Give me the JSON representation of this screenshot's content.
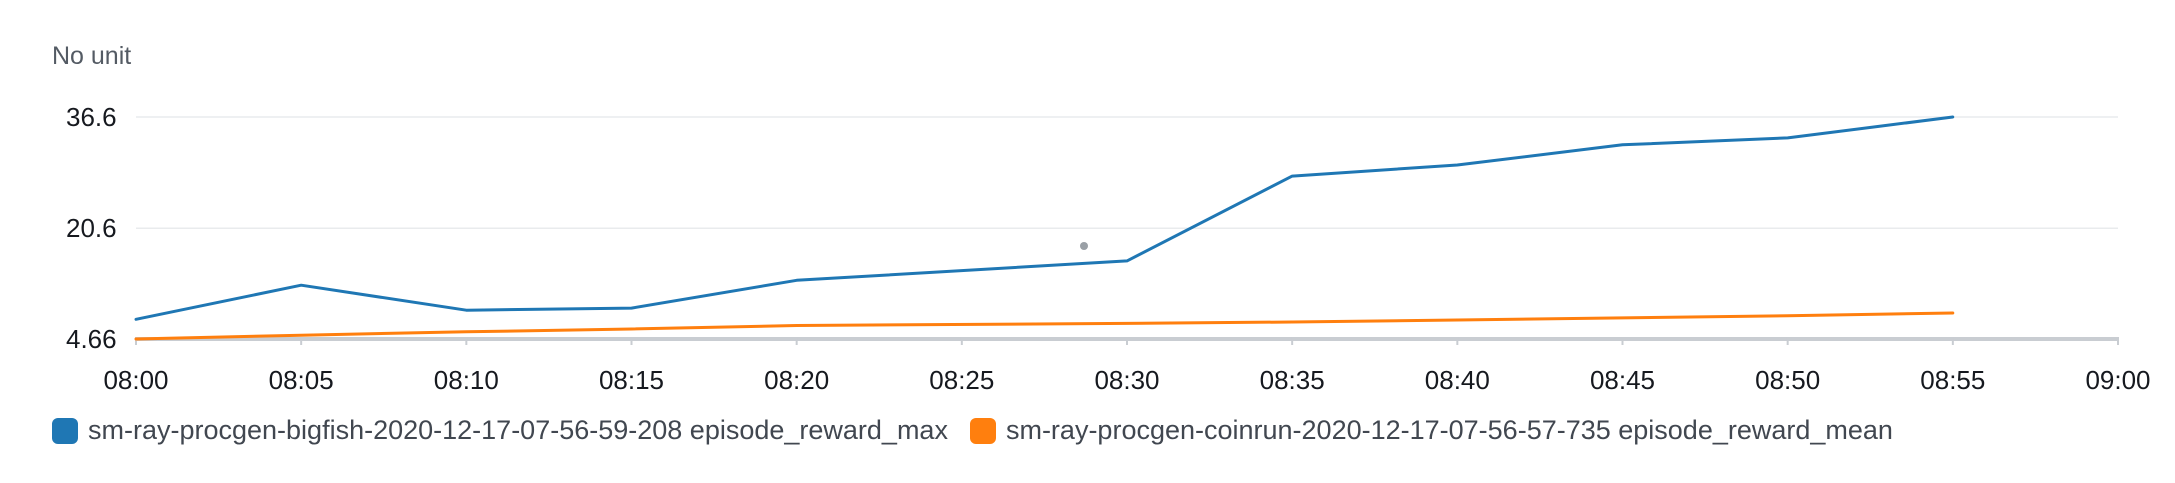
{
  "unit_label": "No unit",
  "chart_data": {
    "type": "line",
    "ylabel": "No unit",
    "y_ticks": [
      4.66,
      20.6,
      36.6
    ],
    "y_tick_labels": [
      "4.66",
      "20.6",
      "36.6"
    ],
    "ylim": [
      4.66,
      36.6
    ],
    "x_ticks": [
      "08:00",
      "08:05",
      "08:10",
      "08:15",
      "08:20",
      "08:25",
      "08:30",
      "08:35",
      "08:40",
      "08:45",
      "08:50",
      "08:55",
      "09:00"
    ],
    "x_range_minutes": [
      0,
      60
    ],
    "grid": true,
    "legend_position": "bottom-left",
    "series": [
      {
        "name": "sm-ray-procgen-bigfish-2020-12-17-07-56-59-208 episode_reward_max",
        "color": "#1f77b4",
        "x": [
          "08:00",
          "08:05",
          "08:10",
          "08:15",
          "08:20",
          "08:30",
          "08:35",
          "08:40",
          "08:45",
          "08:50",
          "08:55"
        ],
        "y": [
          7.5,
          12.4,
          8.8,
          9.1,
          13.1,
          15.9,
          28.1,
          29.7,
          32.6,
          33.6,
          36.6
        ]
      },
      {
        "name": "sm-ray-procgen-coinrun-2020-12-17-07-56-57-735 episode_reward_mean",
        "color": "#ff7f0e",
        "x": [
          "08:00",
          "08:05",
          "08:10",
          "08:15",
          "08:20",
          "08:30",
          "08:35",
          "08:40",
          "08:45",
          "08:50",
          "08:55"
        ],
        "y": [
          4.66,
          5.2,
          5.7,
          6.1,
          6.6,
          6.9,
          7.1,
          7.4,
          7.7,
          8.0,
          8.4
        ]
      }
    ]
  }
}
